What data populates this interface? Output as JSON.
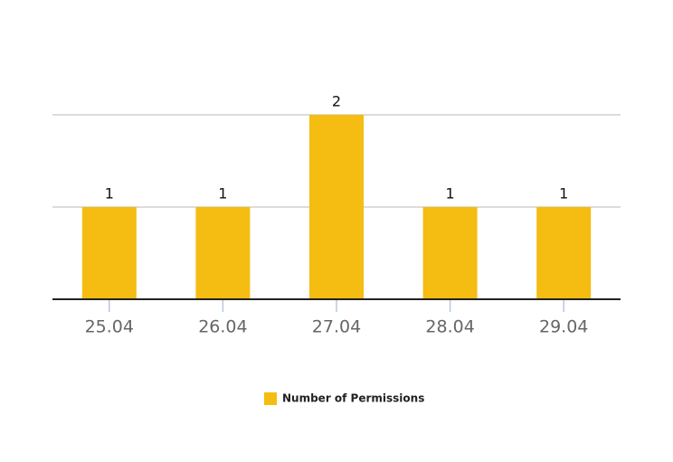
{
  "chart_data": {
    "type": "bar",
    "categories": [
      "25.04",
      "26.04",
      "27.04",
      "28.04",
      "29.04"
    ],
    "series": [
      {
        "name": "Number of Permissions",
        "color": "#f5bc12",
        "values": [
          1,
          1,
          2,
          1,
          1
        ]
      }
    ],
    "ylim": [
      0,
      2
    ],
    "yticks": [
      1,
      2
    ],
    "grid": true
  }
}
